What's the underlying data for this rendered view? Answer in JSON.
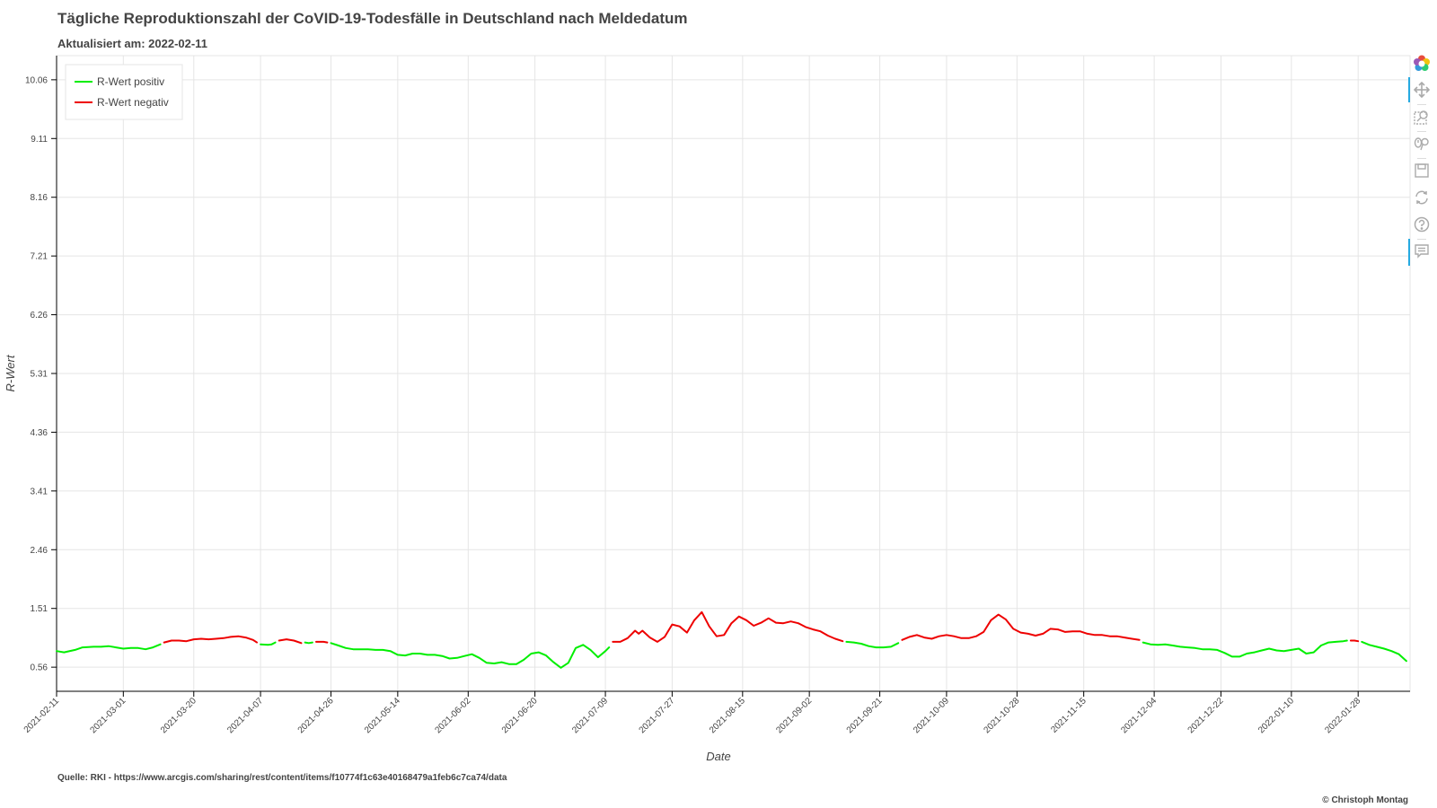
{
  "page": {
    "title": "Tägliche Reproduktionszahl der CoVID-19-Todesfälle in Deutschland nach Meldedatum",
    "subtitle": "Aktualisiert am: 2022-02-11",
    "source": "Quelle: RKI - https://www.arcgis.com/sharing/rest/content/items/f10774f1c63e40168479a1feb6c7ca74/data",
    "copyright": "© Christoph Montag"
  },
  "toolbar": {
    "items": [
      {
        "name": "bokeh-logo-icon",
        "interactable": false
      },
      {
        "name": "pan-tool-icon",
        "interactable": true,
        "active": true
      },
      {
        "name": "box-zoom-tool-icon",
        "interactable": true
      },
      {
        "name": "wheel-zoom-tool-icon",
        "interactable": true
      },
      {
        "name": "save-tool-icon",
        "interactable": true
      },
      {
        "name": "reset-tool-icon",
        "interactable": true
      },
      {
        "name": "help-tool-icon",
        "interactable": true
      },
      {
        "name": "hover-tool-icon",
        "interactable": true,
        "active": true
      }
    ]
  },
  "chart_data": {
    "type": "line",
    "xlabel": "Date",
    "ylabel": "R-Wert",
    "grid": true,
    "legend_position": "top-left",
    "x_range": [
      "2021-02-11",
      "2022-02-11"
    ],
    "y_range": [
      0.17,
      10.45
    ],
    "y_ticks": [
      "0.56",
      "1.51",
      "2.46",
      "3.41",
      "4.36",
      "5.31",
      "6.26",
      "7.21",
      "8.16",
      "9.11",
      "10.06"
    ],
    "x_ticks": [
      "2021-02-11",
      "2021-03-01",
      "2021-03-20",
      "2021-04-07",
      "2021-04-26",
      "2021-05-14",
      "2021-06-02",
      "2021-06-20",
      "2021-07-09",
      "2021-07-27",
      "2021-08-15",
      "2021-09-02",
      "2021-09-21",
      "2021-10-09",
      "2021-10-28",
      "2021-11-15",
      "2021-12-04",
      "2021-12-22",
      "2022-01-10",
      "2022-01-28"
    ],
    "series": [
      {
        "name": "R-Wert positiv",
        "color": "#00ee00"
      },
      {
        "name": "R-Wert negativ",
        "color": "#ee0000"
      }
    ],
    "segments": [
      {
        "series": 0,
        "points": [
          [
            "2021-02-11",
            0.82
          ],
          [
            "2021-02-13",
            0.8
          ],
          [
            "2021-02-16",
            0.84
          ],
          [
            "2021-02-18",
            0.88
          ],
          [
            "2021-02-21",
            0.89
          ],
          [
            "2021-02-23",
            0.89
          ],
          [
            "2021-02-25",
            0.9
          ],
          [
            "2021-02-27",
            0.88
          ],
          [
            "2021-03-01",
            0.86
          ],
          [
            "2021-03-03",
            0.87
          ],
          [
            "2021-03-05",
            0.87
          ],
          [
            "2021-03-07",
            0.85
          ],
          [
            "2021-03-09",
            0.88
          ],
          [
            "2021-03-11",
            0.93
          ]
        ]
      },
      {
        "series": 1,
        "points": [
          [
            "2021-03-12",
            0.96
          ],
          [
            "2021-03-14",
            0.99
          ],
          [
            "2021-03-16",
            0.99
          ],
          [
            "2021-03-18",
            0.98
          ],
          [
            "2021-03-20",
            1.01
          ],
          [
            "2021-03-22",
            1.02
          ],
          [
            "2021-03-24",
            1.01
          ],
          [
            "2021-03-26",
            1.02
          ],
          [
            "2021-03-28",
            1.03
          ],
          [
            "2021-03-30",
            1.05
          ],
          [
            "2021-04-01",
            1.06
          ],
          [
            "2021-04-03",
            1.04
          ],
          [
            "2021-04-05",
            1.0
          ],
          [
            "2021-04-06",
            0.96
          ]
        ]
      },
      {
        "series": 0,
        "points": [
          [
            "2021-04-07",
            0.93
          ],
          [
            "2021-04-09",
            0.92
          ],
          [
            "2021-04-10",
            0.93
          ],
          [
            "2021-04-11",
            0.96
          ]
        ]
      },
      {
        "series": 1,
        "points": [
          [
            "2021-04-12",
            0.99
          ],
          [
            "2021-04-14",
            1.01
          ],
          [
            "2021-04-16",
            0.99
          ],
          [
            "2021-04-18",
            0.95
          ]
        ]
      },
      {
        "series": 0,
        "points": [
          [
            "2021-04-19",
            0.96
          ],
          [
            "2021-04-20",
            0.95
          ],
          [
            "2021-04-21",
            0.96
          ]
        ]
      },
      {
        "series": 1,
        "points": [
          [
            "2021-04-22",
            0.97
          ],
          [
            "2021-04-24",
            0.97
          ],
          [
            "2021-04-25",
            0.96
          ]
        ]
      },
      {
        "series": 0,
        "points": [
          [
            "2021-04-26",
            0.95
          ],
          [
            "2021-04-28",
            0.91
          ],
          [
            "2021-04-30",
            0.87
          ],
          [
            "2021-05-02",
            0.85
          ],
          [
            "2021-05-04",
            0.85
          ],
          [
            "2021-05-06",
            0.85
          ],
          [
            "2021-05-08",
            0.84
          ],
          [
            "2021-05-10",
            0.84
          ],
          [
            "2021-05-12",
            0.82
          ],
          [
            "2021-05-14",
            0.76
          ],
          [
            "2021-05-16",
            0.75
          ],
          [
            "2021-05-18",
            0.78
          ],
          [
            "2021-05-20",
            0.78
          ],
          [
            "2021-05-22",
            0.76
          ],
          [
            "2021-05-24",
            0.76
          ],
          [
            "2021-05-26",
            0.74
          ],
          [
            "2021-05-28",
            0.7
          ],
          [
            "2021-05-30",
            0.71
          ],
          [
            "2021-06-01",
            0.74
          ],
          [
            "2021-06-03",
            0.77
          ],
          [
            "2021-06-05",
            0.71
          ],
          [
            "2021-06-07",
            0.63
          ],
          [
            "2021-06-09",
            0.62
          ],
          [
            "2021-06-11",
            0.64
          ],
          [
            "2021-06-13",
            0.61
          ],
          [
            "2021-06-15",
            0.61
          ],
          [
            "2021-06-17",
            0.68
          ],
          [
            "2021-06-19",
            0.78
          ],
          [
            "2021-06-21",
            0.8
          ],
          [
            "2021-06-23",
            0.75
          ],
          [
            "2021-06-25",
            0.64
          ],
          [
            "2021-06-27",
            0.55
          ],
          [
            "2021-06-29",
            0.63
          ],
          [
            "2021-07-01",
            0.87
          ],
          [
            "2021-07-03",
            0.92
          ],
          [
            "2021-07-05",
            0.84
          ],
          [
            "2021-07-07",
            0.72
          ],
          [
            "2021-07-09",
            0.82
          ],
          [
            "2021-07-10",
            0.88
          ]
        ]
      },
      {
        "series": 1,
        "points": [
          [
            "2021-07-11",
            0.97
          ],
          [
            "2021-07-13",
            0.97
          ],
          [
            "2021-07-15",
            1.03
          ],
          [
            "2021-07-17",
            1.15
          ],
          [
            "2021-07-18",
            1.1
          ],
          [
            "2021-07-19",
            1.15
          ],
          [
            "2021-07-21",
            1.04
          ],
          [
            "2021-07-23",
            0.97
          ],
          [
            "2021-07-25",
            1.05
          ],
          [
            "2021-07-27",
            1.25
          ],
          [
            "2021-07-29",
            1.22
          ],
          [
            "2021-07-31",
            1.12
          ],
          [
            "2021-08-02",
            1.32
          ],
          [
            "2021-08-04",
            1.45
          ],
          [
            "2021-08-06",
            1.22
          ],
          [
            "2021-08-08",
            1.06
          ],
          [
            "2021-08-10",
            1.08
          ],
          [
            "2021-08-12",
            1.27
          ],
          [
            "2021-08-14",
            1.38
          ],
          [
            "2021-08-16",
            1.32
          ],
          [
            "2021-08-18",
            1.23
          ],
          [
            "2021-08-20",
            1.28
          ],
          [
            "2021-08-22",
            1.35
          ],
          [
            "2021-08-24",
            1.28
          ],
          [
            "2021-08-26",
            1.27
          ],
          [
            "2021-08-28",
            1.3
          ],
          [
            "2021-08-30",
            1.27
          ],
          [
            "2021-09-01",
            1.21
          ],
          [
            "2021-09-03",
            1.17
          ],
          [
            "2021-09-05",
            1.14
          ],
          [
            "2021-09-07",
            1.07
          ],
          [
            "2021-09-09",
            1.02
          ],
          [
            "2021-09-11",
            0.98
          ]
        ]
      },
      {
        "series": 0,
        "points": [
          [
            "2021-09-12",
            0.97
          ],
          [
            "2021-09-14",
            0.96
          ],
          [
            "2021-09-16",
            0.94
          ],
          [
            "2021-09-18",
            0.9
          ],
          [
            "2021-09-20",
            0.88
          ],
          [
            "2021-09-22",
            0.88
          ],
          [
            "2021-09-24",
            0.89
          ],
          [
            "2021-09-26",
            0.95
          ]
        ]
      },
      {
        "series": 1,
        "points": [
          [
            "2021-09-27",
            1.0
          ],
          [
            "2021-09-29",
            1.05
          ],
          [
            "2021-10-01",
            1.08
          ],
          [
            "2021-10-03",
            1.04
          ],
          [
            "2021-10-05",
            1.02
          ],
          [
            "2021-10-07",
            1.06
          ],
          [
            "2021-10-09",
            1.08
          ],
          [
            "2021-10-11",
            1.06
          ],
          [
            "2021-10-13",
            1.03
          ],
          [
            "2021-10-15",
            1.03
          ],
          [
            "2021-10-17",
            1.06
          ],
          [
            "2021-10-19",
            1.13
          ],
          [
            "2021-10-21",
            1.32
          ],
          [
            "2021-10-23",
            1.41
          ],
          [
            "2021-10-25",
            1.33
          ],
          [
            "2021-10-27",
            1.18
          ],
          [
            "2021-10-29",
            1.12
          ],
          [
            "2021-10-31",
            1.1
          ],
          [
            "2021-11-02",
            1.07
          ],
          [
            "2021-11-04",
            1.1
          ],
          [
            "2021-11-06",
            1.18
          ],
          [
            "2021-11-08",
            1.17
          ],
          [
            "2021-11-10",
            1.13
          ],
          [
            "2021-11-12",
            1.14
          ],
          [
            "2021-11-14",
            1.14
          ],
          [
            "2021-11-16",
            1.1
          ],
          [
            "2021-11-18",
            1.08
          ],
          [
            "2021-11-20",
            1.08
          ],
          [
            "2021-11-22",
            1.06
          ],
          [
            "2021-11-24",
            1.06
          ],
          [
            "2021-11-26",
            1.04
          ],
          [
            "2021-11-28",
            1.02
          ],
          [
            "2021-11-30",
            1.0
          ]
        ]
      },
      {
        "series": 0,
        "points": [
          [
            "2021-12-01",
            0.96
          ],
          [
            "2021-12-03",
            0.93
          ],
          [
            "2021-12-05",
            0.92
          ],
          [
            "2021-12-07",
            0.93
          ],
          [
            "2021-12-09",
            0.91
          ],
          [
            "2021-12-11",
            0.89
          ],
          [
            "2021-12-13",
            0.88
          ],
          [
            "2021-12-15",
            0.87
          ],
          [
            "2021-12-17",
            0.85
          ],
          [
            "2021-12-19",
            0.85
          ],
          [
            "2021-12-21",
            0.84
          ],
          [
            "2021-12-23",
            0.79
          ],
          [
            "2021-12-25",
            0.73
          ],
          [
            "2021-12-27",
            0.73
          ],
          [
            "2021-12-29",
            0.78
          ],
          [
            "2021-12-31",
            0.8
          ],
          [
            "2022-01-02",
            0.83
          ],
          [
            "2022-01-04",
            0.86
          ],
          [
            "2022-01-06",
            0.83
          ],
          [
            "2022-01-08",
            0.82
          ],
          [
            "2022-01-10",
            0.84
          ],
          [
            "2022-01-12",
            0.86
          ],
          [
            "2022-01-14",
            0.78
          ],
          [
            "2022-01-16",
            0.8
          ],
          [
            "2022-01-18",
            0.91
          ],
          [
            "2022-01-20",
            0.96
          ],
          [
            "2022-01-22",
            0.97
          ],
          [
            "2022-01-24",
            0.98
          ],
          [
            "2022-01-25",
            0.99
          ]
        ]
      },
      {
        "series": 1,
        "points": [
          [
            "2022-01-26",
            0.99
          ],
          [
            "2022-01-27",
            0.99
          ],
          [
            "2022-01-28",
            0.98
          ]
        ]
      },
      {
        "series": 0,
        "points": [
          [
            "2022-01-29",
            0.97
          ],
          [
            "2022-01-31",
            0.92
          ],
          [
            "2022-02-02",
            0.89
          ],
          [
            "2022-02-04",
            0.86
          ],
          [
            "2022-02-06",
            0.82
          ],
          [
            "2022-02-08",
            0.77
          ],
          [
            "2022-02-10",
            0.66
          ]
        ]
      }
    ]
  }
}
